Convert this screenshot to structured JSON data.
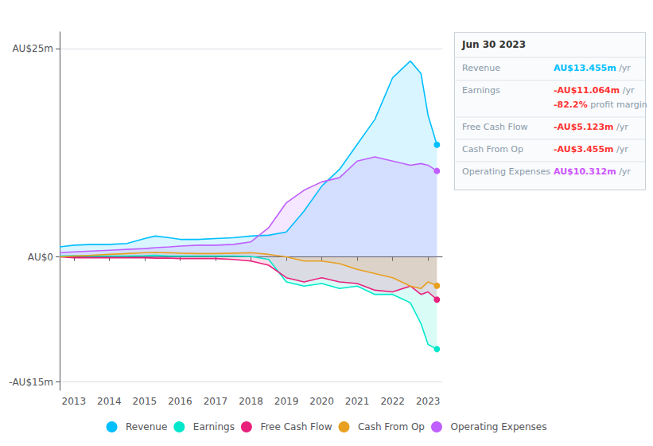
{
  "chart_data": {
    "type": "line",
    "x": [
      2012.6,
      2013.0,
      2013.5,
      2014.0,
      2014.5,
      2015.0,
      2015.3,
      2015.7,
      2016.0,
      2016.5,
      2017.0,
      2017.5,
      2018.0,
      2018.5,
      2019.0,
      2019.5,
      2020.0,
      2020.5,
      2021.0,
      2021.5,
      2022.0,
      2022.5,
      2022.8,
      2023.0,
      2023.25
    ],
    "series": [
      {
        "name": "Revenue",
        "color": "#00bfff",
        "values": [
          1.2,
          1.4,
          1.5,
          1.5,
          1.6,
          2.2,
          2.5,
          2.3,
          2.1,
          2.1,
          2.2,
          2.3,
          2.5,
          2.6,
          3.0,
          5.5,
          8.5,
          10.5,
          13.5,
          16.5,
          21.5,
          23.5,
          22.0,
          17.0,
          13.455
        ]
      },
      {
        "name": "Earnings",
        "color": "#00e8cc",
        "values": [
          0.1,
          0.15,
          0.1,
          0.1,
          0.1,
          0.15,
          0.2,
          0.1,
          0.1,
          0.1,
          0.1,
          0.1,
          0.05,
          -0.3,
          -3.0,
          -3.5,
          -3.2,
          -3.8,
          -3.5,
          -4.5,
          -4.5,
          -5.5,
          -8.0,
          -10.5,
          -11.064
        ]
      },
      {
        "name": "Free Cash Flow",
        "color": "#e8207c",
        "values": [
          0.0,
          -0.1,
          -0.1,
          -0.1,
          -0.1,
          -0.1,
          -0.15,
          -0.15,
          -0.2,
          -0.2,
          -0.2,
          -0.3,
          -0.5,
          -1.0,
          -2.5,
          -3.0,
          -2.5,
          -3.0,
          -3.2,
          -4.0,
          -4.2,
          -3.5,
          -4.5,
          -4.2,
          -5.123
        ]
      },
      {
        "name": "Cash From Op",
        "color": "#e8a020",
        "values": [
          0.0,
          0.1,
          0.2,
          0.3,
          0.4,
          0.5,
          0.55,
          0.5,
          0.45,
          0.4,
          0.4,
          0.45,
          0.5,
          0.3,
          0.0,
          -0.5,
          -0.5,
          -0.8,
          -1.5,
          -2.0,
          -2.5,
          -3.5,
          -3.8,
          -3.0,
          -3.455
        ]
      },
      {
        "name": "Operating Expenses",
        "color": "#bf5fff",
        "values": [
          0.5,
          0.6,
          0.7,
          0.8,
          0.9,
          1.0,
          1.1,
          1.2,
          1.3,
          1.4,
          1.4,
          1.5,
          1.8,
          3.5,
          6.5,
          8.0,
          9.0,
          9.5,
          11.5,
          12.0,
          11.5,
          11.0,
          11.2,
          11.0,
          10.312
        ]
      }
    ],
    "xlim": [
      2012.6,
      2023.4
    ],
    "xticks": [
      2013,
      2014,
      2015,
      2016,
      2017,
      2018,
      2019,
      2020,
      2021,
      2022,
      2023
    ],
    "ylim": [
      -16,
      27
    ],
    "yticks": [
      {
        "value": -15,
        "label": "-AU$15m"
      },
      {
        "value": 0,
        "label": "AU$0"
      },
      {
        "value": 25,
        "label": "AU$25m"
      }
    ],
    "grid": true,
    "legend": "bottom",
    "annotations": [
      {
        "title": "Jun 30 2023",
        "rows": [
          {
            "label": "Revenue",
            "value": "AU$13.455m",
            "suffix": " /yr",
            "color": "#00bfff"
          },
          {
            "label": "Earnings",
            "value": "-AU$11.064m",
            "suffix": " /yr",
            "color": "#ff3333",
            "extra": {
              "value": "-82.2%",
              "suffix": " profit margin",
              "color": "#ff3333"
            }
          },
          {
            "label": "Free Cash Flow",
            "value": "-AU$5.123m",
            "suffix": " /yr",
            "color": "#ff3333"
          },
          {
            "label": "Cash From Op",
            "value": "-AU$3.455m",
            "suffix": " /yr",
            "color": "#ff3333"
          },
          {
            "label": "Operating Expenses",
            "value": "AU$10.312m",
            "suffix": " /yr",
            "color": "#cc55ff"
          }
        ]
      }
    ]
  }
}
